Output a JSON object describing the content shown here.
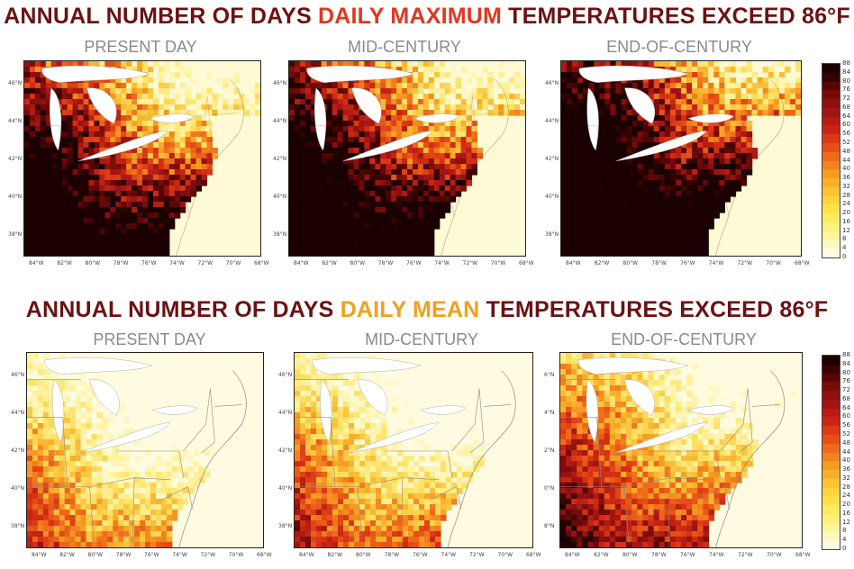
{
  "top_section": {
    "title_pre": "ANNUAL NUMBER OF DAYS ",
    "title_highlight": "DAILY MAXIMUM",
    "title_post": " TEMPERATURES EXCEED 86°F",
    "panels": [
      {
        "label": "PRESENT DAY",
        "intensity": 0.7
      },
      {
        "label": "MID-CENTURY",
        "intensity": 0.8
      },
      {
        "label": "END-OF-CENTURY",
        "intensity": 1.0
      }
    ],
    "lat_labels_a": [
      "46°N",
      "44°N",
      "42°N",
      "40°N",
      "38°N"
    ],
    "lat_labels_b": [
      "46°N",
      "44°N",
      "42°N",
      "40°N",
      "38°N"
    ],
    "lon_labels": [
      "84°W",
      "82°W",
      "80°W",
      "78°W",
      "76°W",
      "74°W",
      "72°W",
      "70°W",
      "68°W"
    ]
  },
  "bottom_section": {
    "title_pre": "ANNUAL NUMBER OF DAYS ",
    "title_highlight": "DAILY MEAN",
    "title_post": " TEMPERATURES EXCEED 86°F",
    "panels": [
      {
        "label": "PRESENT DAY",
        "intensity": 0.15
      },
      {
        "label": "MID-CENTURY",
        "intensity": 0.25
      },
      {
        "label": "END-OF-CENTURY",
        "intensity": 0.55
      }
    ],
    "lat_labels_a": [
      "46°N",
      "44°N",
      "42°N",
      "40°N",
      "38°N"
    ],
    "lat_labels_c": [
      "6°N",
      "4°N",
      "2°N",
      "0°N",
      "8°N"
    ],
    "lon_labels": [
      "84°W",
      "82°W",
      "80°W",
      "78°W",
      "76°W",
      "74°W",
      "72°W",
      "70°W",
      "68°W"
    ]
  },
  "colorbar": {
    "labels": [
      "88",
      "84",
      "80",
      "76",
      "72",
      "68",
      "64",
      "60",
      "56",
      "52",
      "48",
      "44",
      "40",
      "36",
      "32",
      "28",
      "24",
      "20",
      "16",
      "12",
      "8",
      "4",
      "0"
    ],
    "colors": [
      "#1a0000",
      "#3a0000",
      "#5a0505",
      "#7a0a0a",
      "#8e1010",
      "#a01414",
      "#b81a14",
      "#cc2414",
      "#dc3a14",
      "#e65016",
      "#ee6a1a",
      "#f2821e",
      "#f69a22",
      "#f8b028",
      "#fac432",
      "#fcd43e",
      "#fde04c",
      "#feea5e",
      "#fef07a",
      "#fef49a",
      "#fef8be",
      "#fffbe0"
    ]
  }
}
